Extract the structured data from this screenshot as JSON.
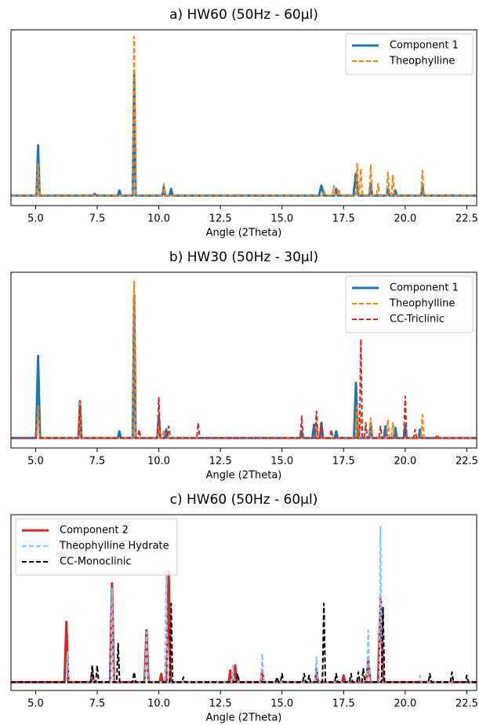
{
  "chart_data": [
    {
      "type": "line",
      "title": "a) HW60 (50Hz - 60µl)",
      "x_label": "Angle (2Theta)",
      "xlim": [
        4.0,
        22.9
      ],
      "ylim": [
        -0.05,
        1.0
      ],
      "xticks": [
        {
          "value": 5,
          "label": "5.0"
        },
        7.5,
        {
          "value": 10,
          "label": "10.0"
        },
        12.5,
        {
          "value": 15,
          "label": "15.0"
        },
        17.5,
        {
          "value": 20,
          "label": "20.0"
        },
        22.5
      ],
      "legend": "upper right",
      "series": [
        {
          "name": "Component 1",
          "color": "#1f77b4",
          "linestyle": "solid",
          "x": [
            4.0,
            5.04,
            5.1,
            5.16,
            7.34,
            7.4,
            7.46,
            8.34,
            8.4,
            8.46,
            8.94,
            9.0,
            9.06,
            10.14,
            10.2,
            10.26,
            10.44,
            10.5,
            10.56,
            16.5,
            16.6,
            16.7,
            17.14,
            17.2,
            17.26,
            17.9,
            18.0,
            18.1,
            18.54,
            18.6,
            18.66,
            19.24,
            19.3,
            19.36,
            19.54,
            19.6,
            19.66,
            20.64,
            20.7,
            20.76,
            22.9
          ],
          "values": [
            0.01,
            0.01,
            0.31,
            0.01,
            0.01,
            0.02,
            0.01,
            0.01,
            0.04,
            0.01,
            0.01,
            0.73,
            0.01,
            0.01,
            0.06,
            0.01,
            0.01,
            0.05,
            0.01,
            0.01,
            0.07,
            0.01,
            0.01,
            0.05,
            0.01,
            0.01,
            0.14,
            0.01,
            0.01,
            0.08,
            0.01,
            0.01,
            0.05,
            0.01,
            0.01,
            0.04,
            0.01,
            0.01,
            0.06,
            0.01,
            0.01
          ]
        },
        {
          "name": "Theophylline",
          "color": "#ff7f0e",
          "linestyle": "dashed",
          "x": [
            4.0,
            5.04,
            5.1,
            5.16,
            8.94,
            9.0,
            9.06,
            10.14,
            10.2,
            10.26,
            16.64,
            16.7,
            16.76,
            17.04,
            17.1,
            17.16,
            17.24,
            17.3,
            17.36,
            17.99,
            18.05,
            18.11,
            18.14,
            18.2,
            18.26,
            18.54,
            18.6,
            18.66,
            18.84,
            18.9,
            18.96,
            19.24,
            19.3,
            19.36,
            19.44,
            19.5,
            19.56,
            20.64,
            20.7,
            20.76,
            22.9
          ],
          "values": [
            0.01,
            0.01,
            0.2,
            0.01,
            0.01,
            0.96,
            0.01,
            0.01,
            0.08,
            0.01,
            0.01,
            0.04,
            0.01,
            0.01,
            0.07,
            0.01,
            0.01,
            0.05,
            0.01,
            0.01,
            0.2,
            0.01,
            0.01,
            0.17,
            0.01,
            0.01,
            0.19,
            0.01,
            0.01,
            0.08,
            0.01,
            0.01,
            0.15,
            0.01,
            0.01,
            0.13,
            0.01,
            0.01,
            0.16,
            0.01,
            0.01
          ]
        }
      ]
    },
    {
      "type": "line",
      "title": "b) HW30 (50Hz - 30µl)",
      "x_label": "Angle (2Theta)",
      "xlim": [
        4.0,
        22.9
      ],
      "ylim": [
        -0.05,
        1.0
      ],
      "xticks": [
        {
          "value": 5,
          "label": "5.0"
        },
        7.5,
        {
          "value": 10,
          "label": "10.0"
        },
        12.5,
        {
          "value": 15,
          "label": "15.0"
        },
        17.5,
        {
          "value": 20,
          "label": "20.0"
        },
        22.5
      ],
      "legend": "upper right",
      "series": [
        {
          "name": "Component 1",
          "color": "#1f77b4",
          "linestyle": "solid",
          "x": [
            4.0,
            5.02,
            5.1,
            5.18,
            6.74,
            6.8,
            6.86,
            8.34,
            8.4,
            8.46,
            8.94,
            9.0,
            9.06,
            9.94,
            10.0,
            10.06,
            10.24,
            10.3,
            10.36,
            15.74,
            15.8,
            15.86,
            16.24,
            16.3,
            16.36,
            16.54,
            16.6,
            16.66,
            17.14,
            17.2,
            17.26,
            17.92,
            18.0,
            18.08,
            18.54,
            18.6,
            18.66,
            19.14,
            19.2,
            19.26,
            19.54,
            19.6,
            19.66,
            19.94,
            20.0,
            20.06,
            20.54,
            20.6,
            20.66,
            22.9
          ],
          "values": [
            0.01,
            0.01,
            0.5,
            0.01,
            0.01,
            0.23,
            0.01,
            0.01,
            0.05,
            0.01,
            0.01,
            0.86,
            0.01,
            0.01,
            0.14,
            0.01,
            0.01,
            0.06,
            0.01,
            0.01,
            0.05,
            0.01,
            0.01,
            0.09,
            0.01,
            0.01,
            0.1,
            0.01,
            0.01,
            0.05,
            0.01,
            0.01,
            0.34,
            0.01,
            0.01,
            0.1,
            0.01,
            0.01,
            0.08,
            0.01,
            0.01,
            0.07,
            0.01,
            0.01,
            0.08,
            0.01,
            0.01,
            0.06,
            0.01,
            0.01
          ]
        },
        {
          "name": "Theophylline",
          "color": "#ff7f0e",
          "linestyle": "dashed",
          "x": [
            4.0,
            5.04,
            5.1,
            5.16,
            6.74,
            6.8,
            6.86,
            8.94,
            9.0,
            9.06,
            9.94,
            10.0,
            10.06,
            10.14,
            10.2,
            10.26,
            16.34,
            16.4,
            16.46,
            17.99,
            18.05,
            18.11,
            18.14,
            18.2,
            18.26,
            18.54,
            18.6,
            18.66,
            19.24,
            19.3,
            19.36,
            19.44,
            19.5,
            19.56,
            20.64,
            20.7,
            20.76,
            22.9
          ],
          "values": [
            0.01,
            0.01,
            0.2,
            0.01,
            0.01,
            0.22,
            0.01,
            0.01,
            0.95,
            0.01,
            0.01,
            0.08,
            0.01,
            0.01,
            0.06,
            0.01,
            0.01,
            0.1,
            0.01,
            0.01,
            0.2,
            0.01,
            0.01,
            0.17,
            0.01,
            0.01,
            0.13,
            0.01,
            0.01,
            0.12,
            0.01,
            0.01,
            0.1,
            0.01,
            0.01,
            0.15,
            0.01,
            0.01
          ]
        },
        {
          "name": "CC-Triclinic",
          "color": "#d62728",
          "linestyle": "dashed",
          "x": [
            4.0,
            6.74,
            6.8,
            6.86,
            9.14,
            9.2,
            9.26,
            9.94,
            10.0,
            10.06,
            10.34,
            10.4,
            10.46,
            11.54,
            11.6,
            11.66,
            14.94,
            15.0,
            15.06,
            15.74,
            15.8,
            15.86,
            16.34,
            16.4,
            16.46,
            16.54,
            16.6,
            16.66,
            16.94,
            17.0,
            17.06,
            18.14,
            18.2,
            18.26,
            18.34,
            18.4,
            18.46,
            18.94,
            19.0,
            19.06,
            19.94,
            20.0,
            20.06,
            20.34,
            20.4,
            20.46,
            21.24,
            21.3,
            21.36,
            22.9
          ],
          "values": [
            0.01,
            0.01,
            0.2,
            0.01,
            0.01,
            0.06,
            0.01,
            0.01,
            0.25,
            0.01,
            0.01,
            0.08,
            0.01,
            0.01,
            0.1,
            0.01,
            0.01,
            0.02,
            0.01,
            0.01,
            0.14,
            0.01,
            0.01,
            0.17,
            0.01,
            0.01,
            0.1,
            0.01,
            0.01,
            0.06,
            0.01,
            0.01,
            0.6,
            0.01,
            0.01,
            0.1,
            0.01,
            0.01,
            0.08,
            0.01,
            0.01,
            0.26,
            0.01,
            0.01,
            0.06,
            0.01,
            0.01,
            0.03,
            0.01,
            0.01
          ]
        }
      ]
    },
    {
      "type": "line",
      "title": "c) HW60 (50Hz - 60µl)",
      "x_label": "Angle (2Theta)",
      "xlim": [
        4.0,
        22.9
      ],
      "ylim": [
        -0.05,
        1.0
      ],
      "xticks": [
        {
          "value": 5,
          "label": "5.0"
        },
        7.5,
        {
          "value": 10,
          "label": "10.0"
        },
        12.5,
        {
          "value": 15,
          "label": "15.0"
        },
        17.5,
        {
          "value": 20,
          "label": "20.0"
        },
        22.5
      ],
      "legend": "upper left",
      "series": [
        {
          "name": "Component 2",
          "color": "#d62728",
          "linestyle": "solid",
          "x": [
            4.0,
            6.17,
            6.25,
            6.33,
            7.24,
            7.3,
            7.36,
            8.02,
            8.1,
            8.18,
            9.42,
            9.5,
            9.58,
            10.04,
            10.1,
            10.16,
            10.32,
            10.4,
            10.48,
            12.84,
            12.9,
            12.96,
            13.04,
            13.1,
            13.16,
            14.14,
            14.2,
            14.26,
            16.34,
            16.4,
            16.46,
            17.44,
            17.5,
            17.56,
            18.42,
            18.5,
            18.58,
            18.9,
            19.0,
            19.1,
            22.9
          ],
          "values": [
            0.0,
            0.0,
            0.36,
            0.0,
            0.0,
            0.06,
            0.0,
            0.0,
            0.59,
            0.0,
            0.0,
            0.31,
            0.0,
            0.0,
            0.05,
            0.0,
            0.0,
            0.66,
            0.0,
            0.0,
            0.07,
            0.0,
            0.0,
            0.1,
            0.0,
            0.0,
            0.07,
            0.0,
            0.0,
            0.08,
            0.0,
            0.0,
            0.04,
            0.0,
            0.0,
            0.14,
            0.0,
            0.0,
            0.51,
            0.0,
            0.0
          ]
        },
        {
          "name": "Theophylline Hydrate",
          "color": "#89c4f4",
          "linestyle": "dashed",
          "x": [
            4.0,
            6.24,
            6.3,
            6.36,
            7.24,
            7.3,
            7.36,
            8.04,
            8.1,
            8.16,
            9.44,
            9.5,
            9.56,
            10.24,
            10.3,
            10.36,
            12.94,
            13.0,
            13.06,
            14.14,
            14.2,
            14.26,
            16.34,
            16.4,
            16.46,
            18.44,
            18.5,
            18.56,
            18.94,
            19.0,
            19.06,
            20.54,
            20.6,
            20.66,
            22.9
          ],
          "values": [
            0.0,
            0.0,
            0.18,
            0.0,
            0.0,
            0.05,
            0.0,
            0.0,
            0.56,
            0.0,
            0.0,
            0.3,
            0.0,
            0.0,
            0.66,
            0.0,
            0.0,
            0.1,
            0.0,
            0.0,
            0.17,
            0.0,
            0.0,
            0.15,
            0.0,
            0.0,
            0.31,
            0.0,
            0.0,
            0.93,
            0.0,
            0.0,
            0.04,
            0.0,
            0.0
          ]
        },
        {
          "name": "CC-Monoclinic",
          "color": "#000000",
          "linestyle": "dashed",
          "x": [
            4.0,
            7.24,
            7.3,
            7.36,
            7.44,
            7.5,
            7.56,
            8.29,
            8.35,
            8.41,
            8.94,
            9.0,
            9.06,
            10.44,
            10.5,
            10.56,
            10.94,
            11.0,
            11.06,
            13.14,
            13.2,
            13.26,
            14.74,
            14.8,
            14.86,
            14.94,
            15.0,
            15.06,
            15.84,
            15.9,
            15.96,
            16.04,
            16.1,
            16.16,
            16.64,
            16.7,
            16.76,
            17.14,
            17.2,
            17.26,
            17.74,
            17.8,
            17.86,
            18.04,
            18.1,
            18.16,
            18.24,
            18.3,
            18.36,
            19.04,
            19.1,
            19.16,
            20.94,
            21.0,
            21.06,
            21.84,
            21.9,
            21.96,
            22.44,
            22.5,
            22.56,
            22.9
          ],
          "values": [
            0.0,
            0.0,
            0.1,
            0.0,
            0.0,
            0.1,
            0.0,
            0.0,
            0.23,
            0.0,
            0.0,
            0.06,
            0.0,
            0.0,
            0.47,
            0.0,
            0.0,
            0.03,
            0.0,
            0.0,
            0.05,
            0.0,
            0.0,
            0.03,
            0.0,
            0.0,
            0.05,
            0.0,
            0.0,
            0.05,
            0.0,
            0.0,
            0.04,
            0.0,
            0.0,
            0.47,
            0.0,
            0.0,
            0.05,
            0.0,
            0.0,
            0.05,
            0.0,
            0.0,
            0.06,
            0.0,
            0.0,
            0.08,
            0.0,
            0.0,
            0.45,
            0.0,
            0.0,
            0.05,
            0.0,
            0.0,
            0.06,
            0.0,
            0.0,
            0.04,
            0.0,
            0.0
          ]
        }
      ]
    }
  ]
}
